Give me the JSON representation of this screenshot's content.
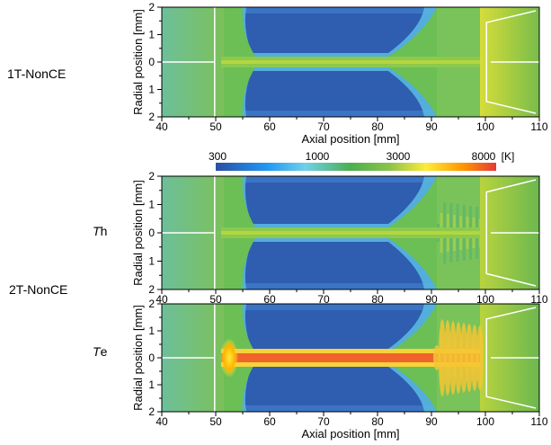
{
  "side_labels": {
    "case1": "1T-NonCE",
    "case2": "2T-NonCE",
    "th_var": "T",
    "th_sub": "h",
    "te_var": "T",
    "te_sub": "e"
  },
  "colorbar": {
    "ticks": [
      "300",
      "1000",
      "3000",
      "8000"
    ],
    "unit": "[K]",
    "colors": [
      "#2c4ea3",
      "#2196f3",
      "#6fd0ea",
      "#4caf50",
      "#8bc34a",
      "#ffeb3b",
      "#ff9800",
      "#e53935"
    ]
  },
  "chart_data": [
    {
      "type": "heatmap",
      "title": "",
      "xlabel": "Axial position [mm]",
      "ylabel": "Radial position [mm]",
      "xlim": [
        40,
        110
      ],
      "ylim": [
        -2,
        2
      ],
      "x_ticks": [
        "40",
        "50",
        "60",
        "70",
        "80",
        "90",
        "100",
        "110"
      ],
      "y_ticks": [
        "2",
        "1",
        "0",
        "1",
        "2"
      ],
      "variable": "1T-NonCE temperature",
      "description_values": {
        "min_K": 300,
        "max_K": 8000
      }
    },
    {
      "type": "heatmap",
      "title": "",
      "xlabel": "",
      "ylabel": "Radial position [mm]",
      "xlim": [
        40,
        110
      ],
      "ylim": [
        -2,
        2
      ],
      "x_ticks": [
        "40",
        "50",
        "60",
        "70",
        "80",
        "90",
        "100",
        "110"
      ],
      "y_ticks": [
        "2",
        "1",
        "0",
        "1",
        "2"
      ],
      "variable": "Th",
      "description_values": {
        "min_K": 300,
        "max_K": 8000
      }
    },
    {
      "type": "heatmap",
      "title": "",
      "xlabel": "Axial position [mm]",
      "ylabel": "Radial position [mm]",
      "xlim": [
        40,
        110
      ],
      "ylim": [
        -2,
        2
      ],
      "x_ticks": [
        "40",
        "50",
        "60",
        "70",
        "80",
        "90",
        "100",
        "110"
      ],
      "y_ticks": [
        "2",
        "1",
        "0",
        "1",
        "2"
      ],
      "variable": "Te",
      "description_values": {
        "min_K": 300,
        "max_K": 8000
      }
    }
  ]
}
